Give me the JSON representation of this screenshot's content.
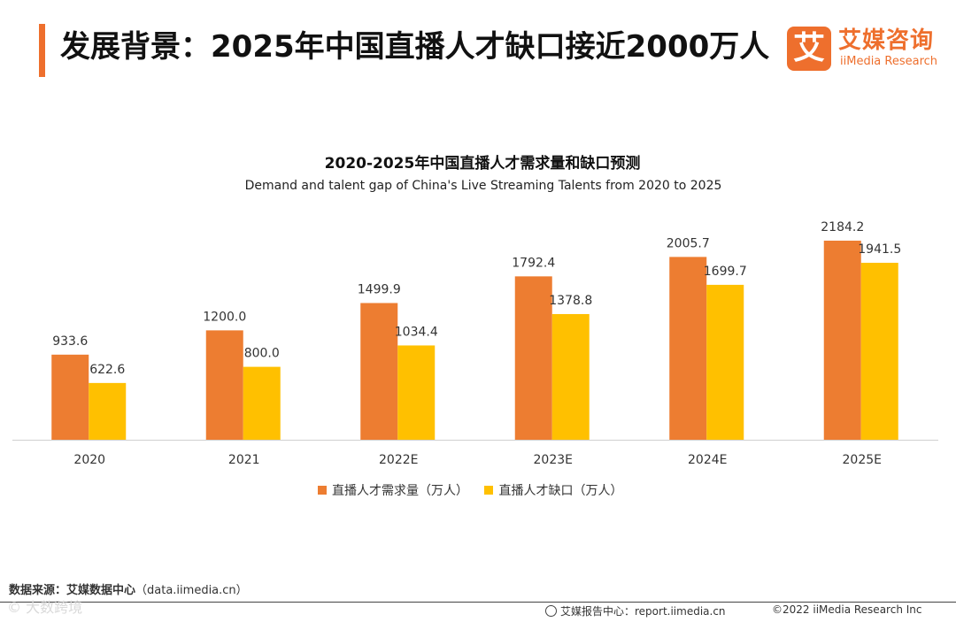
{
  "header": {
    "title": "发展背景：2025年中国直播人才缺口接近2000万人"
  },
  "logo": {
    "mark": "艾",
    "name_cn": "艾媒咨询",
    "name_en": "iiMedia Research"
  },
  "colors": {
    "accent": "#ee6f2d",
    "demand": "#ed7d31",
    "gap": "#ffc000"
  },
  "chart_data": {
    "type": "bar",
    "title": "2020-2025年中国直播人才需求量和缺口预测",
    "subtitle": "Demand and talent gap of China's Live Streaming Talents from 2020 to 2025",
    "categories": [
      "2020",
      "2021",
      "2022E",
      "2023E",
      "2024E",
      "2025E"
    ],
    "series": [
      {
        "name": "直播人才需求量（万人）",
        "values": [
          933.6,
          1200.0,
          1499.9,
          1792.4,
          2005.7,
          2184.2
        ]
      },
      {
        "name": "直播人才缺口（万人）",
        "values": [
          622.6,
          800.0,
          1034.4,
          1378.8,
          1699.7,
          1941.5
        ]
      }
    ],
    "xlabel": "",
    "ylabel": "",
    "ylim": [
      0,
      2184.2
    ],
    "legend": "bottom",
    "grid": false
  },
  "footer": {
    "source_label": "数据来源：艾媒数据中心",
    "source_url": "（data.iimedia.cn）",
    "watermark": "©  大数跨境",
    "report": "艾媒报告中心：report.iimedia.cn",
    "copyright": "©2022 iiMedia Research Inc"
  }
}
